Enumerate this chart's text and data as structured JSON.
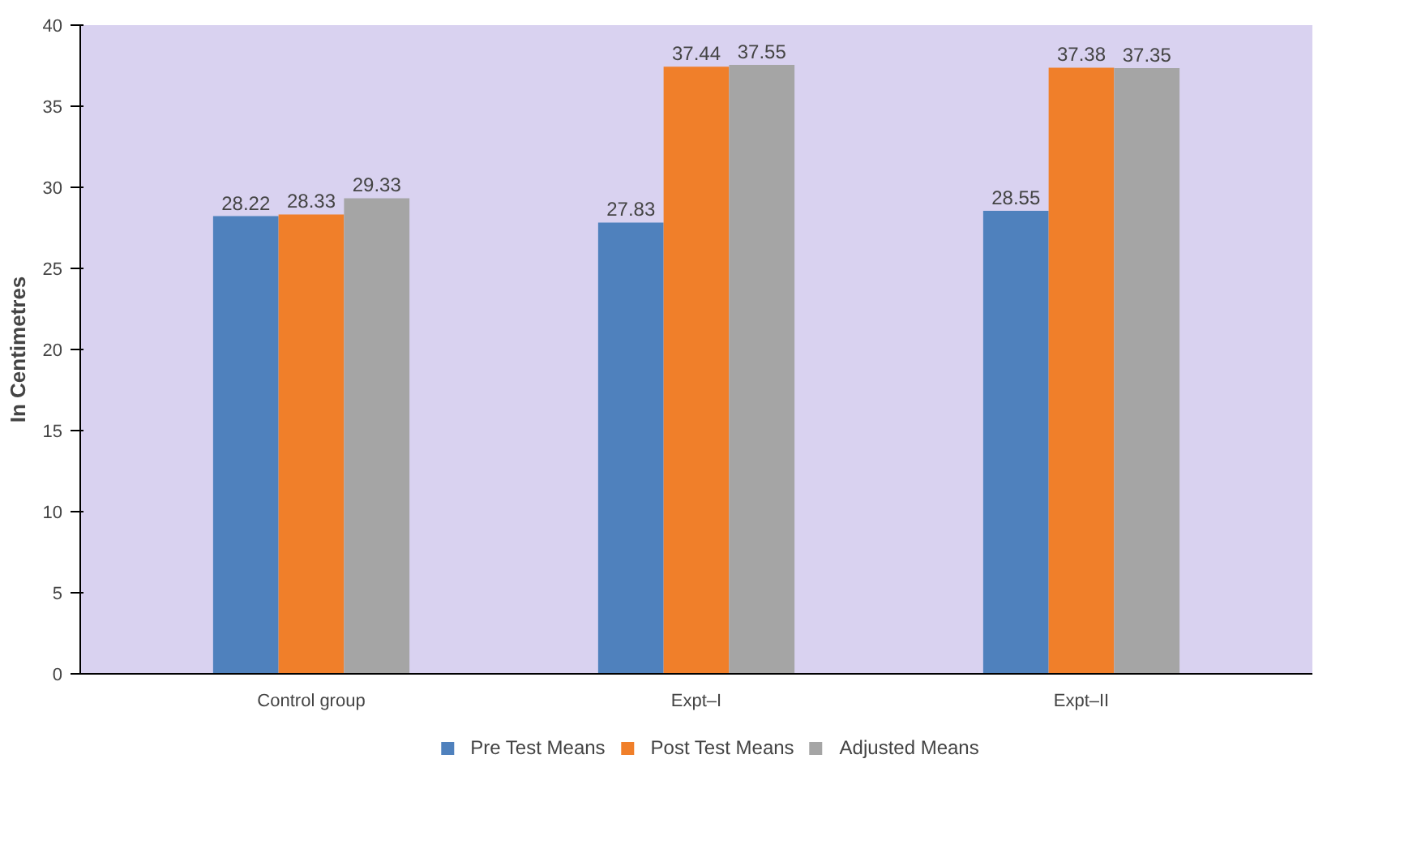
{
  "chart_data": {
    "type": "bar",
    "ylabel": "In Centimetres",
    "categories": [
      "Control group",
      "Expt–I",
      "Expt–II"
    ],
    "series": [
      {
        "name": "Pre Test Means",
        "color": "#4f81bd",
        "values": [
          28.22,
          27.83,
          28.55
        ]
      },
      {
        "name": "Post Test Means",
        "color": "#f07f2a",
        "values": [
          28.33,
          37.44,
          37.38
        ]
      },
      {
        "name": "Adjusted Means",
        "color": "#a5a5a5",
        "values": [
          29.33,
          37.55,
          37.35
        ]
      }
    ],
    "ylim": [
      0,
      40
    ],
    "yticks": [
      0,
      5,
      10,
      15,
      20,
      25,
      30,
      35,
      40
    ],
    "data_labels": true,
    "grid": false,
    "legend": "bottom"
  }
}
